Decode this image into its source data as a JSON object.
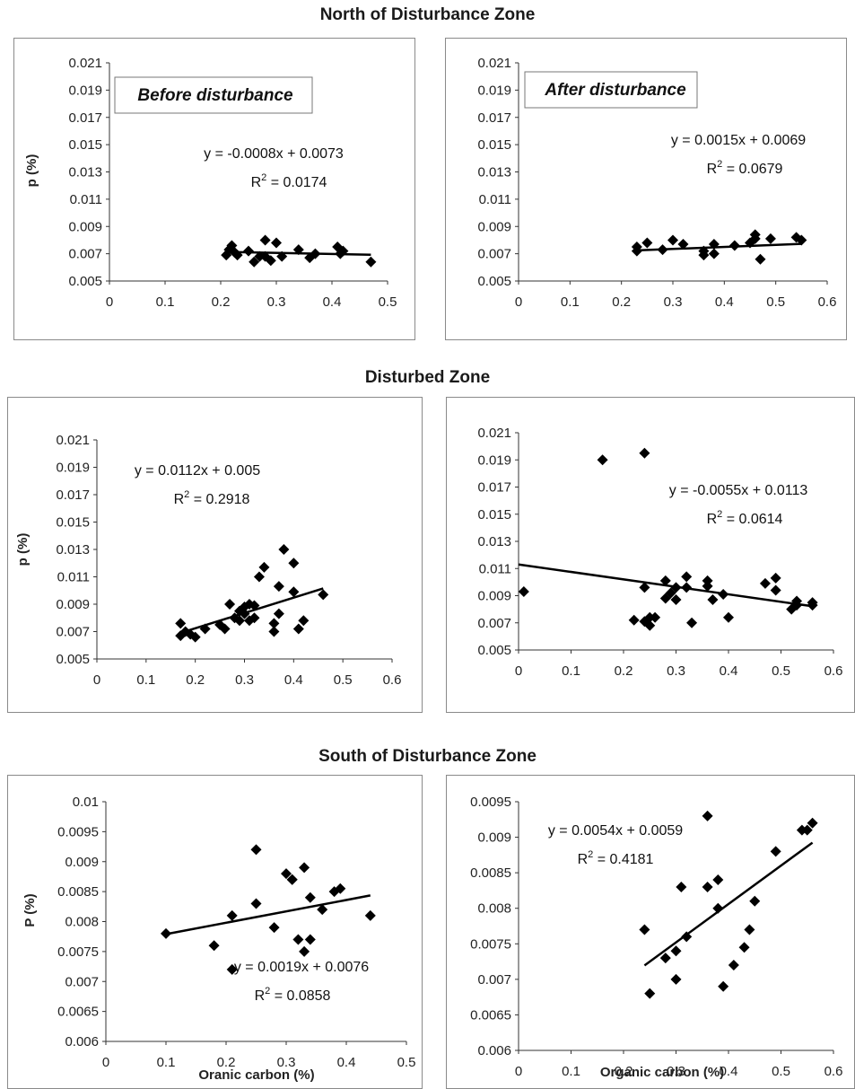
{
  "sections": [
    {
      "title": "North of Disturbance Zone"
    },
    {
      "title": "Disturbed Zone"
    },
    {
      "title": "South of Disturbance Zone"
    }
  ],
  "chart_data": [
    {
      "type": "scatter",
      "section": "North of Disturbance Zone",
      "title": "",
      "label_box": "Before disturbance",
      "xlabel": "",
      "ylabel": "p (%)",
      "xlim": [
        0,
        0.5
      ],
      "ylim": [
        0.005,
        0.021
      ],
      "xticks": [
        "0",
        "0.1",
        "0.2",
        "0.3",
        "0.4",
        "0.5"
      ],
      "yticks": [
        "0.005",
        "0.007",
        "0.009",
        "0.011",
        "0.013",
        "0.015",
        "0.017",
        "0.019",
        "0.021"
      ],
      "grid": false,
      "equation": "y = -0.0008x + 0.0073",
      "r2_prefix": "R",
      "r2_sup": "2",
      "r2_value": " = 0.0174",
      "trendline": {
        "slope": -0.0008,
        "intercept": 0.0073,
        "x_range": [
          0.21,
          0.47
        ]
      },
      "series": [
        {
          "x": [
            0.21,
            0.215,
            0.22,
            0.225,
            0.23,
            0.25,
            0.26,
            0.27,
            0.28,
            0.28,
            0.29,
            0.3,
            0.31,
            0.34,
            0.36,
            0.37,
            0.41,
            0.415,
            0.42,
            0.47
          ],
          "y": [
            0.0069,
            0.0073,
            0.0076,
            0.0071,
            0.0069,
            0.0072,
            0.0064,
            0.0068,
            0.008,
            0.0068,
            0.0065,
            0.0078,
            0.0068,
            0.0073,
            0.0067,
            0.007,
            0.0075,
            0.007,
            0.0072,
            0.0064
          ]
        }
      ]
    },
    {
      "type": "scatter",
      "section": "North of Disturbance Zone",
      "title": "",
      "label_box": "After disturbance",
      "xlabel": "",
      "ylabel": "",
      "xlim": [
        0,
        0.6
      ],
      "ylim": [
        0.005,
        0.021
      ],
      "xticks": [
        "0",
        "0.1",
        "0.2",
        "0.3",
        "0.4",
        "0.5",
        "0.6"
      ],
      "yticks": [
        "0.005",
        "0.007",
        "0.009",
        "0.011",
        "0.013",
        "0.015",
        "0.017",
        "0.019",
        "0.021"
      ],
      "grid": false,
      "equation": "y = 0.0015x + 0.0069",
      "r2_prefix": "R",
      "r2_sup": "2",
      "r2_value": " = 0.0679",
      "trendline": {
        "slope": 0.0015,
        "intercept": 0.0069,
        "x_range": [
          0.23,
          0.55
        ]
      },
      "series": [
        {
          "x": [
            0.23,
            0.23,
            0.25,
            0.28,
            0.3,
            0.32,
            0.36,
            0.36,
            0.38,
            0.38,
            0.42,
            0.45,
            0.46,
            0.46,
            0.47,
            0.49,
            0.54,
            0.55
          ],
          "y": [
            0.0075,
            0.0072,
            0.0078,
            0.0073,
            0.008,
            0.0077,
            0.0072,
            0.0069,
            0.0077,
            0.007,
            0.0076,
            0.0078,
            0.0084,
            0.0081,
            0.0066,
            0.0081,
            0.0082,
            0.008
          ]
        }
      ]
    },
    {
      "type": "scatter",
      "section": "Disturbed Zone",
      "title": "",
      "label_box": "",
      "xlabel": "",
      "ylabel": "p (%)",
      "xlim": [
        0,
        0.6
      ],
      "ylim": [
        0.005,
        0.021
      ],
      "xticks": [
        "0",
        "0.1",
        "0.2",
        "0.3",
        "0.4",
        "0.5",
        "0.6"
      ],
      "yticks": [
        "0.005",
        "0.007",
        "0.009",
        "0.011",
        "0.013",
        "0.015",
        "0.017",
        "0.019",
        "0.021"
      ],
      "grid": false,
      "equation": "y = 0.0112x + 0.005",
      "r2_prefix": "R",
      "r2_sup": "2",
      "r2_value": " = 0.2918",
      "trendline": {
        "slope": 0.0112,
        "intercept": 0.005,
        "x_range": [
          0.17,
          0.46
        ]
      },
      "series": [
        {
          "x": [
            0.17,
            0.17,
            0.18,
            0.19,
            0.2,
            0.22,
            0.25,
            0.26,
            0.27,
            0.28,
            0.29,
            0.29,
            0.3,
            0.3,
            0.31,
            0.31,
            0.32,
            0.32,
            0.33,
            0.34,
            0.36,
            0.36,
            0.37,
            0.37,
            0.38,
            0.4,
            0.4,
            0.41,
            0.42,
            0.46
          ],
          "y": [
            0.0076,
            0.0067,
            0.007,
            0.0068,
            0.0066,
            0.0072,
            0.0075,
            0.0072,
            0.009,
            0.008,
            0.0085,
            0.0078,
            0.0083,
            0.0088,
            0.009,
            0.0078,
            0.008,
            0.0089,
            0.011,
            0.0117,
            0.007,
            0.0076,
            0.0103,
            0.0083,
            0.013,
            0.012,
            0.0099,
            0.0072,
            0.0078,
            0.0097
          ]
        }
      ]
    },
    {
      "type": "scatter",
      "section": "Disturbed Zone",
      "title": "",
      "label_box": "",
      "xlabel": "",
      "ylabel": "",
      "xlim": [
        0,
        0.6
      ],
      "ylim": [
        0.005,
        0.021
      ],
      "xticks": [
        "0",
        "0.1",
        "0.2",
        "0.3",
        "0.4",
        "0.5",
        "0.6"
      ],
      "yticks": [
        "0.005",
        "0.007",
        "0.009",
        "0.011",
        "0.013",
        "0.015",
        "0.017",
        "0.019",
        "0.021"
      ],
      "grid": false,
      "equation": "y = -0.0055x + 0.0113",
      "r2_prefix": "R",
      "r2_sup": "2",
      "r2_value": " = 0.0614",
      "trendline": {
        "slope": -0.0055,
        "intercept": 0.0113,
        "x_range": [
          0,
          0.56
        ]
      },
      "series": [
        {
          "x": [
            0.01,
            0.16,
            0.22,
            0.24,
            0.24,
            0.24,
            0.25,
            0.25,
            0.26,
            0.28,
            0.28,
            0.29,
            0.3,
            0.3,
            0.32,
            0.32,
            0.33,
            0.36,
            0.36,
            0.37,
            0.39,
            0.4,
            0.47,
            0.49,
            0.49,
            0.52,
            0.53,
            0.53,
            0.56,
            0.56
          ],
          "y": [
            0.0093,
            0.019,
            0.0072,
            0.0195,
            0.0096,
            0.0071,
            0.0068,
            0.0074,
            0.0074,
            0.0088,
            0.0101,
            0.0092,
            0.0087,
            0.0096,
            0.0104,
            0.0096,
            0.007,
            0.0101,
            0.0097,
            0.0087,
            0.0091,
            0.0074,
            0.0099,
            0.0103,
            0.0094,
            0.008,
            0.0083,
            0.0086,
            0.0083,
            0.0085
          ]
        }
      ]
    },
    {
      "type": "scatter",
      "section": "South of Disturbance Zone",
      "title": "",
      "label_box": "",
      "xlabel": "Oranic carbon (%)",
      "ylabel": "P (%)",
      "xlim": [
        0,
        0.5
      ],
      "ylim": [
        0.006,
        0.01
      ],
      "xticks": [
        "0",
        "0.1",
        "0.2",
        "0.3",
        "0.4",
        "0.5"
      ],
      "yticks": [
        "0.006",
        "0.0065",
        "0.007",
        "0.0075",
        "0.008",
        "0.0085",
        "0.009",
        "0.0095",
        "0.01"
      ],
      "grid": false,
      "equation": "y = 0.0019x + 0.0076",
      "r2_prefix": "R",
      "r2_sup": "2",
      "r2_value": " = 0.0858",
      "trendline": {
        "slope": 0.0019,
        "intercept": 0.0076,
        "x_range": [
          0.1,
          0.44
        ]
      },
      "series": [
        {
          "x": [
            0.1,
            0.18,
            0.21,
            0.21,
            0.25,
            0.25,
            0.28,
            0.3,
            0.31,
            0.31,
            0.32,
            0.33,
            0.33,
            0.34,
            0.34,
            0.36,
            0.38,
            0.39,
            0.44
          ],
          "y": [
            0.0078,
            0.0076,
            0.0081,
            0.0072,
            0.0092,
            0.0083,
            0.0079,
            0.0088,
            0.0087,
            0.0087,
            0.0077,
            0.0089,
            0.0075,
            0.0084,
            0.0077,
            0.0082,
            0.0085,
            0.00855,
            0.0081
          ]
        }
      ]
    },
    {
      "type": "scatter",
      "section": "South of Disturbance Zone",
      "title": "",
      "label_box": "",
      "xlabel": "Organic carbon (%)",
      "ylabel": "",
      "xlim": [
        0,
        0.6
      ],
      "ylim": [
        0.006,
        0.0095
      ],
      "xticks": [
        "0",
        "0.1",
        "0.2",
        "0.3",
        "0.4",
        "0.5",
        "0.6"
      ],
      "yticks": [
        "0.006",
        "0.0065",
        "0.007",
        "0.0075",
        "0.008",
        "0.0085",
        "0.009",
        "0.0095"
      ],
      "grid": false,
      "equation": "y = 0.0054x + 0.0059",
      "r2_prefix": "R",
      "r2_sup": "2",
      "r2_value": " = 0.4181",
      "trendline": {
        "slope": 0.0054,
        "intercept": 0.0059,
        "x_range": [
          0.24,
          0.56
        ]
      },
      "series": [
        {
          "x": [
            0.24,
            0.25,
            0.28,
            0.3,
            0.3,
            0.31,
            0.32,
            0.36,
            0.36,
            0.38,
            0.38,
            0.39,
            0.41,
            0.43,
            0.44,
            0.45,
            0.49,
            0.54,
            0.55,
            0.56
          ],
          "y": [
            0.0077,
            0.0068,
            0.0073,
            0.007,
            0.0074,
            0.0083,
            0.0076,
            0.0093,
            0.0083,
            0.0084,
            0.008,
            0.0069,
            0.0072,
            0.00745,
            0.0077,
            0.0081,
            0.0088,
            0.0091,
            0.0091,
            0.0092
          ]
        }
      ]
    }
  ]
}
